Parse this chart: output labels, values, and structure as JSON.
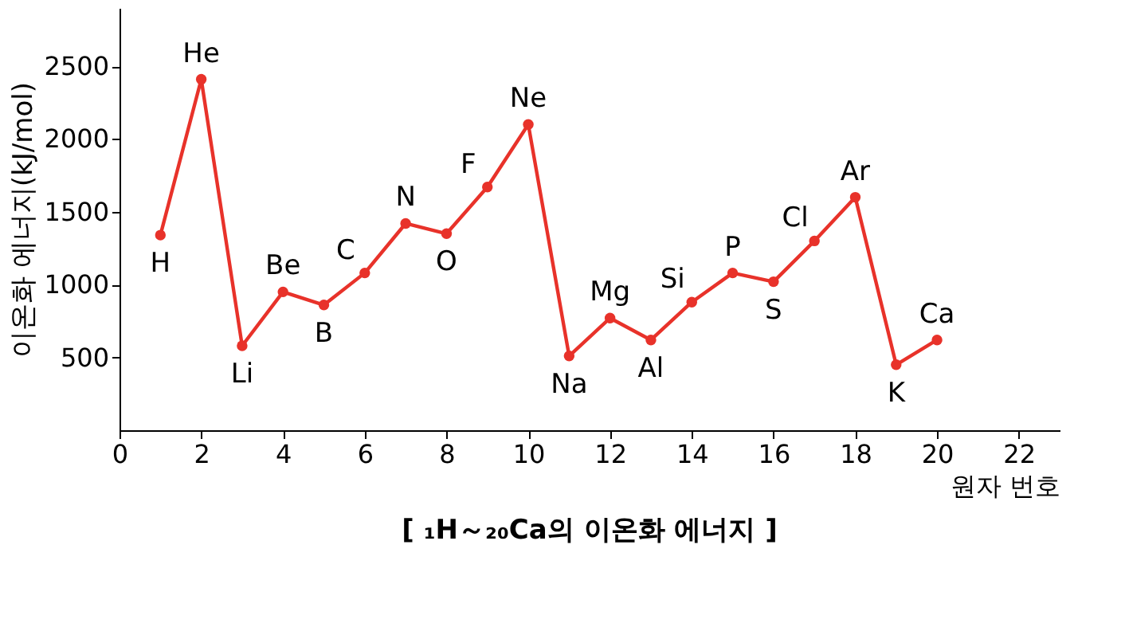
{
  "chart_data": {
    "type": "line",
    "title": "[ ₁H～₂₀Ca의 이온화 에너지 ]",
    "xlabel": "원자 번호",
    "ylabel": "이온화 에너지(kJ/mol)",
    "x": [
      1,
      2,
      3,
      4,
      5,
      6,
      7,
      8,
      9,
      10,
      11,
      12,
      13,
      14,
      15,
      16,
      17,
      18,
      19,
      20
    ],
    "series": [
      {
        "color": "#e8322a",
        "values": [
          1340,
          2410,
          580,
          950,
          860,
          1080,
          1420,
          1350,
          1670,
          2100,
          510,
          770,
          620,
          880,
          1080,
          1020,
          1300,
          1600,
          450,
          620
        ]
      }
    ],
    "annotations": [
      {
        "text": "H",
        "x": 1,
        "y": 1340
      },
      {
        "text": "He",
        "x": 2,
        "y": 2410
      },
      {
        "text": "Li",
        "x": 3,
        "y": 580
      },
      {
        "text": "Be",
        "x": 4,
        "y": 950
      },
      {
        "text": "B",
        "x": 5,
        "y": 860
      },
      {
        "text": "C",
        "x": 6,
        "y": 1080
      },
      {
        "text": "N",
        "x": 7,
        "y": 1420
      },
      {
        "text": "O",
        "x": 8,
        "y": 1350
      },
      {
        "text": "F",
        "x": 9,
        "y": 1670
      },
      {
        "text": "Ne",
        "x": 10,
        "y": 2100
      },
      {
        "text": "Na",
        "x": 11,
        "y": 510
      },
      {
        "text": "Mg",
        "x": 12,
        "y": 770
      },
      {
        "text": "Al",
        "x": 13,
        "y": 620
      },
      {
        "text": "Si",
        "x": 14,
        "y": 880
      },
      {
        "text": "P",
        "x": 15,
        "y": 1080
      },
      {
        "text": "S",
        "x": 16,
        "y": 1020
      },
      {
        "text": "Cl",
        "x": 17,
        "y": 1300
      },
      {
        "text": "Ar",
        "x": 18,
        "y": 1600
      },
      {
        "text": "K",
        "x": 19,
        "y": 450
      },
      {
        "text": "Ca",
        "x": 20,
        "y": 620
      }
    ],
    "xlim": [
      0,
      23
    ],
    "ylim": [
      0,
      2900
    ],
    "xticks": [
      0,
      2,
      4,
      6,
      8,
      10,
      12,
      14,
      16,
      18,
      20,
      22
    ],
    "yticks": [
      500,
      1000,
      1500,
      2000,
      2500
    ],
    "marker": "circle",
    "line_style": "solid",
    "grid": false
  }
}
